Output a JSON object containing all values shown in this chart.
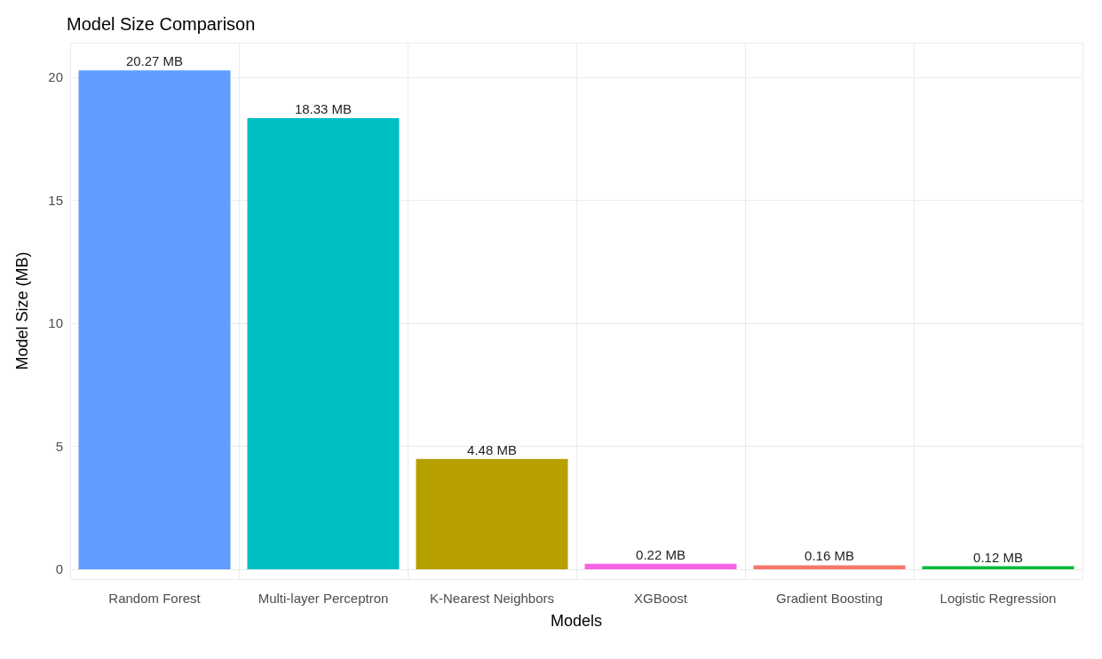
{
  "chart_data": {
    "type": "bar",
    "title": "Model Size Comparison",
    "xlabel": "Models",
    "ylabel": "Model Size (MB)",
    "categories": [
      "Random Forest",
      "Multi-layer Perceptron",
      "K-Nearest Neighbors",
      "XGBoost",
      "Gradient Boosting",
      "Logistic Regression"
    ],
    "values": [
      20.27,
      18.33,
      4.48,
      0.22,
      0.16,
      0.12
    ],
    "colors": [
      "#619cff",
      "#00bfc4",
      "#b79f00",
      "#f564e3",
      "#f8766d",
      "#00ba38"
    ],
    "value_labels": [
      "20.27 MB",
      "18.33 MB",
      "4.48 MB",
      "0.22 MB",
      "0.16 MB",
      "0.12 MB"
    ],
    "ylim": [
      -0.4,
      21.4
    ],
    "yticks": [
      0,
      5,
      10,
      15,
      20
    ],
    "grid": true
  }
}
